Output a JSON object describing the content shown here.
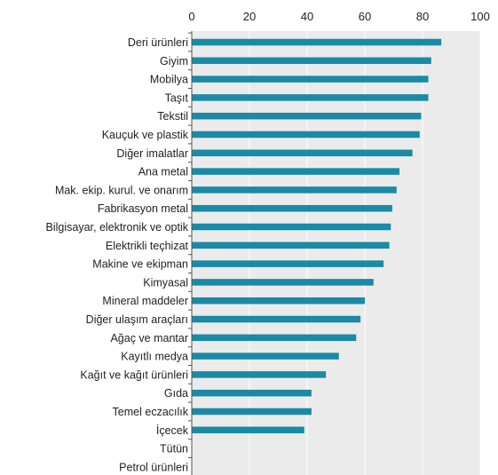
{
  "chart_data": {
    "type": "bar",
    "orientation": "horizontal",
    "title": "",
    "xlabel": "",
    "ylabel": "",
    "xlim": [
      0,
      100
    ],
    "x_ticks": [
      "0",
      "20",
      "40",
      "60",
      "80",
      "100"
    ],
    "x_axis_position": "top",
    "grid": "vertical",
    "legend": "none",
    "categories": [
      "Deri ürünleri",
      "Giyim",
      "Mobilya",
      "Taşıt",
      "Tekstil",
      "Kauçuk ve plastik",
      "Diğer imalatlar",
      "Ana metal",
      "Mak. ekip. kurul. ve onarım",
      "Fabrikasyon metal",
      "Bilgisayar, elektronik ve optik",
      "Elektrikli teçhizat",
      "Makine ve ekipman",
      "Kimyasal",
      "Mineral maddeler",
      "Diğer ulaşım araçları",
      "Ağaç ve mantar",
      "Kayıtlı medya",
      "Kağıt ve kağıt ürünleri",
      "Gıda",
      "Temel eczacılık",
      "İçecek",
      "Tütün",
      "Petrol ürünleri"
    ],
    "values": [
      86.5,
      83,
      82,
      82,
      79.5,
      79,
      76.5,
      72,
      71,
      69.5,
      69,
      68.5,
      66.5,
      63,
      60,
      58.5,
      57,
      51,
      46.5,
      41.5,
      41.5,
      39,
      0,
      0
    ]
  },
  "colors": {
    "bar": "#1a8aa6",
    "plot_background": "#ebebeb",
    "grid": "#ffffff",
    "axis": "#555555",
    "text": "#222222"
  }
}
